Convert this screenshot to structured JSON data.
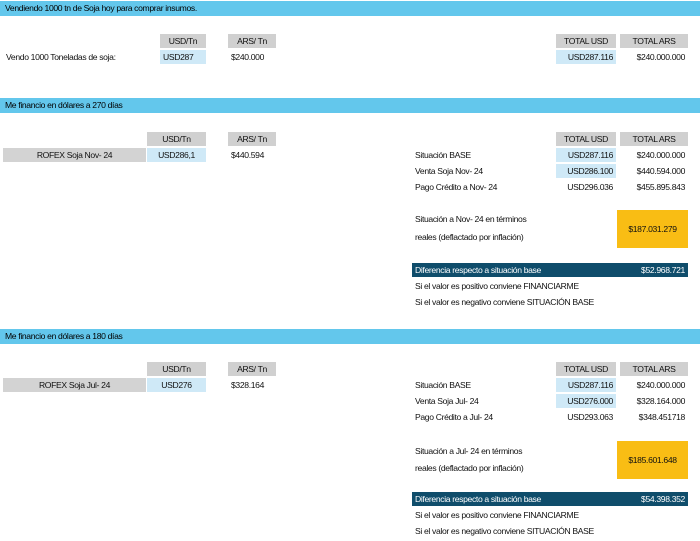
{
  "sections": {
    "s1": {
      "title": "Vendiendo 1000 tn de Soja hoy para comprar insumos."
    },
    "s2": {
      "title": "Me financio en dólares a 270 días"
    },
    "s3": {
      "title": "Me financio en dólares a 180 días"
    }
  },
  "s1": {
    "col_usd": "USD/Tn",
    "col_ars": "ARS/ Tn",
    "row_label": "Vendo 1000 Toneladas de soja:",
    "usd_tn": "USD287",
    "ars_tn": "$240.000",
    "total_usd_h": "TOTAL USD",
    "total_ars_h": "TOTAL ARS",
    "total_usd": "USD287.116",
    "total_ars": "$240.000.000"
  },
  "s2": {
    "col_usd": "USD/Tn",
    "col_ars": "ARS/ Tn",
    "row_label": "ROFEX Soja Nov- 24",
    "usd_tn": "USD286,1",
    "ars_tn": "$440.594",
    "total_usd_h": "TOTAL USD",
    "total_ars_h": "TOTAL ARS",
    "rows": [
      {
        "label": "Situación BASE",
        "usd": "USD287.116",
        "ars": "$240.000.000"
      },
      {
        "label": "Venta Soja Nov- 24",
        "usd": "USD286.100",
        "ars": "$440.594.000"
      },
      {
        "label": "Pago Crédito a Nov- 24",
        "usd": "USD296.036",
        "ars": "$455.895.843"
      }
    ],
    "real_line1": "Situación a Nov- 24 en términos",
    "real_line2": "reales (deflactado por inflación)",
    "real_value": "$187.031.279",
    "diff_label": "Diferencia respecto a situación base",
    "diff_value": "$52.968.721",
    "note1": "Si el valor es positivo conviene FINANCIARME",
    "note2": "Si el valor es negativo conviene SITUACIÓN BASE"
  },
  "s3": {
    "col_usd": "USD/Tn",
    "col_ars": "ARS/ Tn",
    "row_label": "ROFEX Soja Jul- 24",
    "usd_tn": "USD276",
    "ars_tn": "$328.164",
    "total_usd_h": "TOTAL USD",
    "total_ars_h": "TOTAL ARS",
    "rows": [
      {
        "label": "Situación BASE",
        "usd": "USD287.116",
        "ars": "$240.000.000"
      },
      {
        "label": "Venta Soja Jul- 24",
        "usd": "USD276.000",
        "ars": "$328.164.000"
      },
      {
        "label": "Pago Crédito a Jul- 24",
        "usd": "USD293.063",
        "ars": "$348.451718"
      }
    ],
    "real_line1": "Situación a Jul- 24 en términos",
    "real_line2": "reales (deflactado por inflación)",
    "real_value": "$185.601.648",
    "diff_label": "Diferencia respecto a situación base",
    "diff_value": "$54.398.352",
    "note1": "Si el valor es positivo conviene FINANCIARME",
    "note2": "Si el valor es negativo conviene SITUACIÓN BASE"
  }
}
